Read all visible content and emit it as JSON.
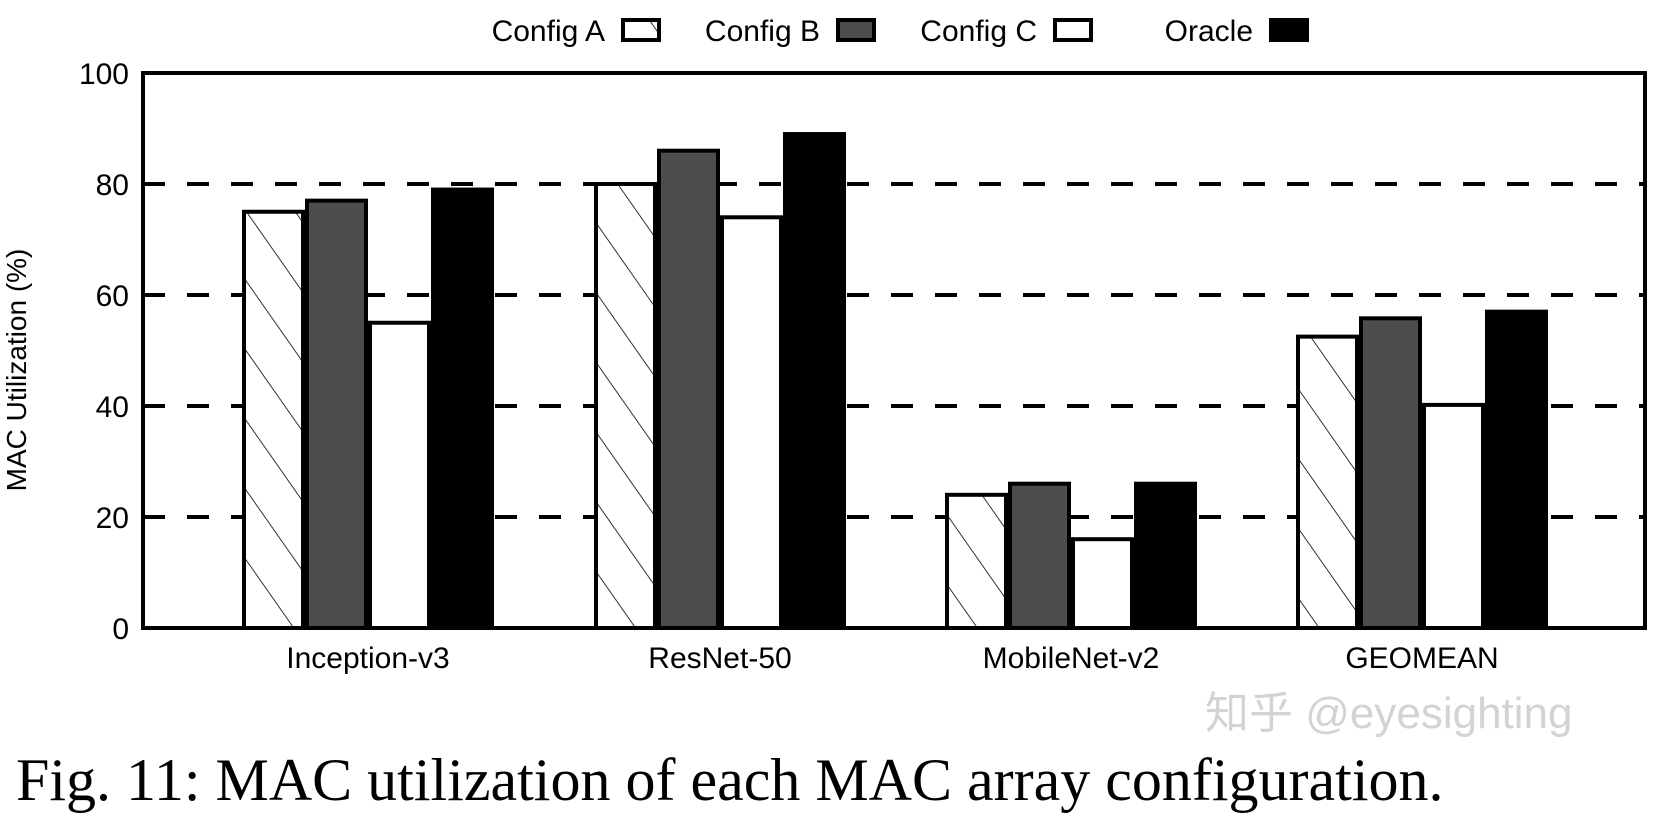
{
  "chart_data": {
    "type": "bar",
    "title": "",
    "xlabel": "",
    "ylabel": "MAC Utilization (%)",
    "ylim": [
      0,
      100
    ],
    "yticks": [
      "0",
      "20",
      "40",
      "60",
      "80",
      "100"
    ],
    "grid": "horizontal dashed at 20, 40, 60, 80",
    "legend_placement": "top",
    "categories": [
      "Inception-v3",
      "ResNet-50",
      "MobileNet-v2",
      "GEOMEAN"
    ],
    "series": [
      {
        "name": "Config A",
        "values": [
          75,
          80,
          24,
          52.5
        ],
        "fill": "hatch",
        "color": "#ffffff"
      },
      {
        "name": "Config B",
        "values": [
          77,
          86,
          26,
          55.8
        ],
        "fill": "solid",
        "color": "#4d4d4d"
      },
      {
        "name": "Config C",
        "values": [
          55,
          74,
          16,
          40.2
        ],
        "fill": "solid",
        "color": "#ffffff"
      },
      {
        "name": "Oracle",
        "values": [
          79,
          89,
          26,
          57
        ],
        "fill": "solid",
        "color": "#000000"
      }
    ]
  },
  "caption": "Fig. 11: MAC utilization of each MAC array configuration.",
  "watermark": "知乎 @eyesighting"
}
